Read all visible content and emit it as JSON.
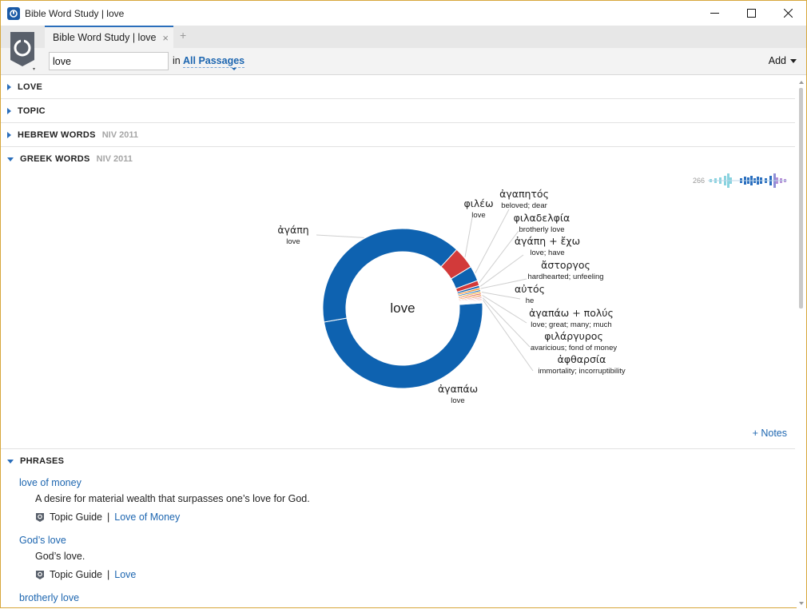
{
  "window": {
    "title": "Bible Word Study | love",
    "minimize": "—",
    "maximize": "☐",
    "close": "✕"
  },
  "tab": {
    "label": "Bible Word Study | love",
    "close": "×",
    "add": "+"
  },
  "toolbar": {
    "search_value": "love",
    "in_label": "in",
    "passages": "All Passages",
    "add_label": "Add"
  },
  "sections": {
    "love": {
      "title": "LOVE"
    },
    "topic": {
      "title": "TOPIC"
    },
    "hebrew": {
      "title": "HEBREW WORDS",
      "version": "NIV 2011"
    },
    "greek": {
      "title": "GREEK WORDS",
      "version": "NIV 2011"
    },
    "phrases": {
      "title": "PHRASES"
    }
  },
  "timeline": {
    "count": "266"
  },
  "chart_data": {
    "type": "pie",
    "center_label": "love",
    "slices": [
      {
        "word": "ἀγαπάω",
        "gloss": "love",
        "value": 142,
        "color": "#0e62b0"
      },
      {
        "word": "ἀγάπη",
        "gloss": "love",
        "value": 116,
        "color": "#0e62b0"
      },
      {
        "word": "φιλέω",
        "gloss": "love",
        "value": 13,
        "color": "#d23a3a"
      },
      {
        "word": "ἀγαπητός",
        "gloss": "beloved; dear",
        "value": 9,
        "color": "#0e62b0"
      },
      {
        "word": "φιλαδελφία",
        "gloss": "brotherly love",
        "value": 3,
        "color": "#d23a3a"
      },
      {
        "word": "ἀγάπη + ἔχω",
        "gloss": "love; have",
        "value": 1.4,
        "color": "#0e62b0"
      },
      {
        "word": "ἄστοργος",
        "gloss": "hardhearted; unfeeling",
        "value": 1.2,
        "color": "#f08a24"
      },
      {
        "word": "",
        "gloss": "",
        "value": 1.0,
        "color": "#0e62b0"
      },
      {
        "word": "αὐτός",
        "gloss": "he",
        "value": 1.0,
        "color": "#f5a623"
      },
      {
        "word": "",
        "gloss": "",
        "value": 0.9,
        "color": "#d23a3a"
      },
      {
        "word": "ἀγαπάω + πολύς",
        "gloss": "love; great; many; much",
        "value": 0.9,
        "color": "#f08a24"
      },
      {
        "word": "",
        "gloss": "",
        "value": 0.7,
        "color": "#d23a3a"
      },
      {
        "word": "φιλάργυρος",
        "gloss": "avaricious; fond of money",
        "value": 0.7,
        "color": "#e07070"
      },
      {
        "word": "",
        "gloss": "",
        "value": 0.6,
        "color": "#d23a3a"
      },
      {
        "word": "ἀφθαρσία",
        "gloss": "immortality; incorruptibility",
        "value": 0.6,
        "color": "#e07070"
      },
      {
        "word": "",
        "gloss": "",
        "value": 0.5,
        "color": "#d23a3a"
      },
      {
        "word": "",
        "gloss": "",
        "value": 0.5,
        "color": "#e07070"
      },
      {
        "word": "",
        "gloss": "",
        "value": 0.4,
        "color": "#d23a3a"
      }
    ]
  },
  "notes_label": "+ Notes",
  "phrases": [
    {
      "title": "love of money",
      "description": "A desire for material wealth that surpasses one’s love for God.",
      "guide_label": "Topic Guide",
      "separator": "|",
      "guide_link": "Love of Money"
    },
    {
      "title": "God’s love",
      "description": "God’s love.",
      "guide_label": "Topic Guide",
      "separator": "|",
      "guide_link": "Love"
    },
    {
      "title": "brotherly love"
    }
  ]
}
